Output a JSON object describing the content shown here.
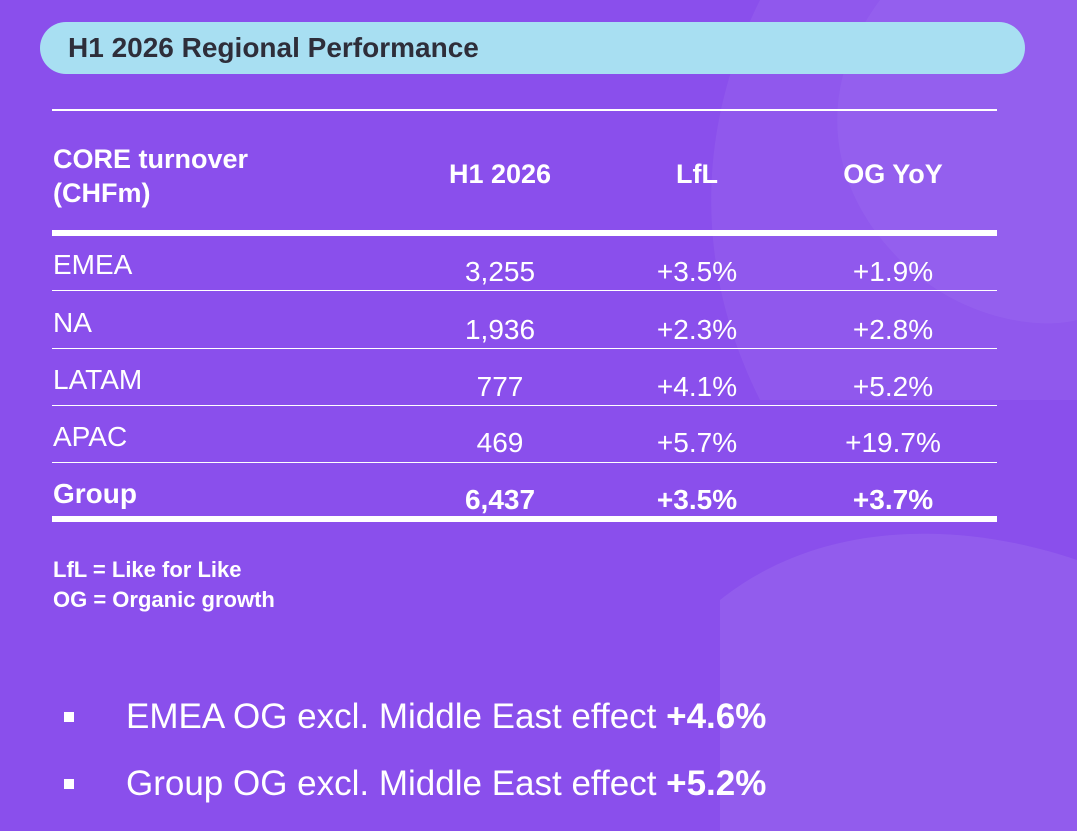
{
  "title": "H1 2026 Regional Performance",
  "table": {
    "headers": [
      "CORE turnover (CHFm)",
      "H1 2026",
      "LfL",
      "OG YoY"
    ],
    "header_first_lines": [
      "CORE turnover",
      "(CHFm)"
    ],
    "rows": [
      {
        "region": "EMEA",
        "h1": "3,255",
        "lfl": "+3.5%",
        "og": "+1.9%"
      },
      {
        "region": "NA",
        "h1": "1,936",
        "lfl": "+2.3%",
        "og": "+2.8%"
      },
      {
        "region": "LATAM",
        "h1": "777",
        "lfl": "+4.1%",
        "og": "+5.2%"
      },
      {
        "region": "APAC",
        "h1": "469",
        "lfl": "+5.7%",
        "og": "+19.7%"
      }
    ],
    "total": {
      "region": "Group",
      "h1": "6,437",
      "lfl": "+3.5%",
      "og": "+3.7%"
    }
  },
  "notes": [
    "LfL = Like for Like",
    "OG = Organic growth"
  ],
  "bullets": [
    {
      "text": "EMEA OG excl. Middle East effect ",
      "value": "+4.6%"
    },
    {
      "text": "Group OG excl. Middle East effect ",
      "value": "+5.2%"
    }
  ],
  "colors": {
    "background": "#8a4fec",
    "title_bar": "#a8dff2",
    "title_text": "#2e2e3a",
    "text": "#ffffff"
  }
}
